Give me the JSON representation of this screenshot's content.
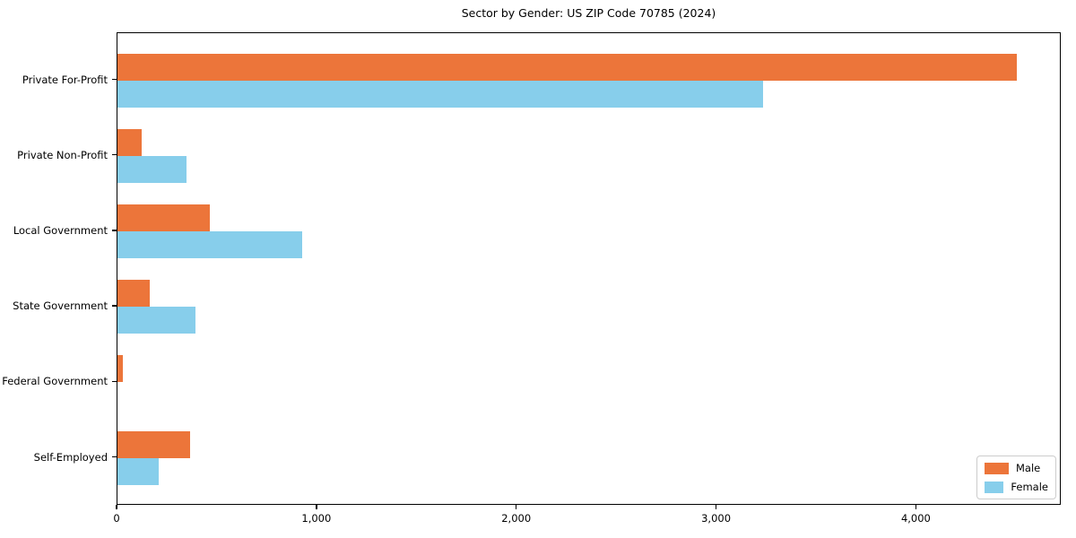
{
  "figure": {
    "background": "#ffffff"
  },
  "chart_data": {
    "type": "bar",
    "orientation": "horizontal",
    "title": "Sector by Gender: US ZIP Code 70785 (2024)",
    "categories": [
      "Private For-Profit",
      "Private Non-Profit",
      "Local Government",
      "State Government",
      "Federal Government",
      "Self-Employed"
    ],
    "series": [
      {
        "name": "Male",
        "color": "#ec753a",
        "values": [
          4500,
          120,
          460,
          160,
          25,
          365
        ]
      },
      {
        "name": "Female",
        "color": "#87ceeb",
        "values": [
          3230,
          345,
          925,
          390,
          0,
          205
        ]
      }
    ],
    "xlabel": "",
    "ylabel": "",
    "xlim": [
      0,
      4725
    ],
    "xticks": [
      0,
      1000,
      2000,
      3000,
      4000
    ],
    "xtick_labels": [
      "0",
      "1,000",
      "2,000",
      "3,000",
      "4,000"
    ],
    "grid": false,
    "legend_position": "lower right",
    "axis_color": "#000000",
    "legend_border_color": "#cccccc",
    "background": "#ffffff"
  }
}
